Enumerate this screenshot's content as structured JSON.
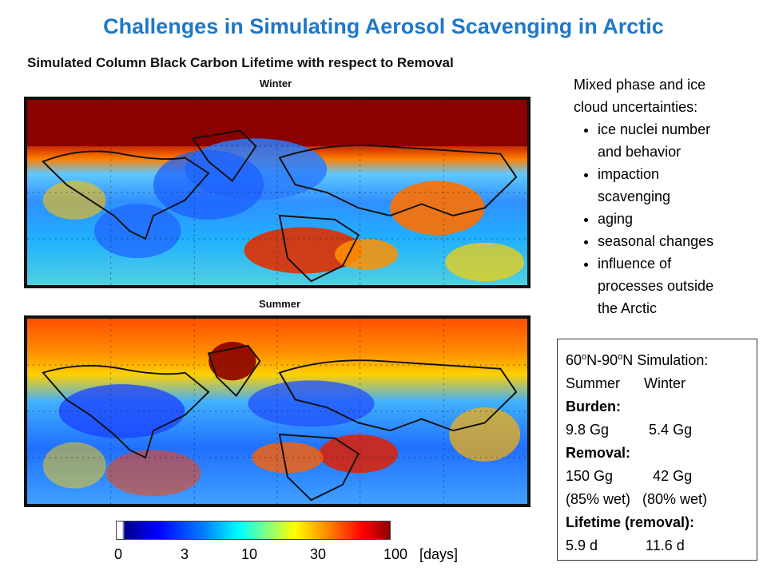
{
  "slide": {
    "title": "Challenges in Simulating Aerosol Scavenging in Arctic",
    "subtitle": "Simulated Column Black Carbon Lifetime with respect to Removal"
  },
  "maps": {
    "winter_label": "Winter",
    "summer_label": "Summer",
    "colormap": "jet",
    "colors": {
      "high": "#8b0000",
      "low": "#00008b",
      "coastline": "#111111"
    }
  },
  "colorbar": {
    "ticks": [
      "0",
      "3",
      "10",
      "30",
      "100"
    ],
    "unit": "[days]"
  },
  "uncertainties": {
    "heading_line1": "Mixed phase and ice",
    "heading_line2": "cloud uncertainties:",
    "items": [
      [
        "ice nuclei number",
        "and behavior"
      ],
      [
        "impaction",
        "scavenging"
      ],
      [
        "aging"
      ],
      [
        "seasonal changes"
      ],
      [
        "influence of",
        "processes outside",
        "the Arctic"
      ]
    ]
  },
  "simulation": {
    "header": "60oN-90oN Simulation:",
    "header_parts": {
      "a": "60",
      "sup1": "o",
      "b": "N-90",
      "sup2": "o",
      "c": "N Simulation:"
    },
    "columns": "Summer      Winter",
    "burden_label": "Burden:",
    "burden_values": "9.8 Gg          5.4 Gg",
    "removal_label": "Removal:",
    "removal_values": "150 Gg          42 Gg",
    "removal_wet": "(85% wet)   (80% wet)",
    "lifetime_label": "Lifetime (removal):",
    "lifetime_values": "5.9 d            11.6 d"
  }
}
